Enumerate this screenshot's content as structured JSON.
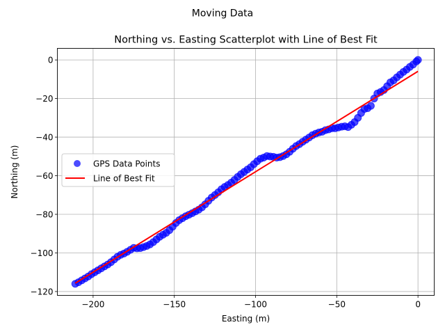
{
  "figure": {
    "suptitle": "Moving Data"
  },
  "chart_data": {
    "type": "scatter",
    "title": "Northing vs. Easting Scatterplot with Line of Best Fit",
    "xlabel": "Easting (m)",
    "ylabel": "Northing (m)",
    "xlim": [
      -222,
      10
    ],
    "ylim": [
      -122,
      6
    ],
    "xticks": [
      -200,
      -150,
      -100,
      -50,
      0
    ],
    "xtick_labels": [
      "−200",
      "−150",
      "−100",
      "−50",
      "0"
    ],
    "yticks": [
      -120,
      -100,
      -80,
      -60,
      -40,
      -20,
      0
    ],
    "ytick_labels": [
      "−120",
      "−100",
      "−80",
      "−60",
      "−40",
      "−20",
      "0"
    ],
    "grid": true,
    "legend_position": "center-left",
    "series": [
      {
        "name": "GPS Data Points",
        "kind": "scatter",
        "color": "#0000ff",
        "opacity": 0.7,
        "x": [
          -211,
          -209,
          -207,
          -205,
          -203,
          -201,
          -199,
          -197,
          -195,
          -193,
          -191,
          -189,
          -187,
          -185,
          -183,
          -181,
          -179,
          -177,
          -175,
          -173,
          -171,
          -169,
          -167,
          -165,
          -163,
          -161,
          -159,
          -157,
          -155,
          -153,
          -151,
          -149,
          -147,
          -145,
          -143,
          -141,
          -139,
          -137,
          -135,
          -133,
          -131,
          -129,
          -127,
          -125,
          -123,
          -121,
          -119,
          -117,
          -115,
          -113,
          -111,
          -109,
          -107,
          -105,
          -103,
          -101,
          -99,
          -97,
          -95,
          -93,
          -91,
          -89,
          -87,
          -85,
          -83,
          -81,
          -79,
          -77,
          -75,
          -73,
          -71,
          -69,
          -67,
          -65,
          -63,
          -61,
          -59,
          -57,
          -55,
          -53,
          -51,
          -49,
          -47,
          -45,
          -43,
          -41,
          -39,
          -37,
          -35,
          -33,
          -31,
          -29,
          -27,
          -25,
          -23,
          -21,
          -19,
          -17,
          -15,
          -13,
          -11,
          -9,
          -7,
          -5,
          -3,
          -1,
          0
        ],
        "y": [
          -116,
          -115.2,
          -114.2,
          -113.2,
          -112.2,
          -111,
          -110,
          -109,
          -108,
          -107,
          -106,
          -104.8,
          -103.4,
          -102,
          -101,
          -100.3,
          -99.4,
          -98.4,
          -97.4,
          -97.6,
          -97.5,
          -97,
          -96.4,
          -95.6,
          -94.4,
          -93,
          -91.6,
          -90.6,
          -89.6,
          -88.2,
          -86.4,
          -84.5,
          -83,
          -82,
          -81,
          -80.2,
          -79.4,
          -78.5,
          -77.6,
          -76.4,
          -74.8,
          -73,
          -71.3,
          -70,
          -68.6,
          -67,
          -65.8,
          -64.8,
          -63.6,
          -62.2,
          -60.6,
          -59.2,
          -58,
          -56.8,
          -55.6,
          -54,
          -52.5,
          -51.2,
          -50.6,
          -49.8,
          -50,
          -50.2,
          -50.6,
          -50.4,
          -49.8,
          -48.9,
          -47.6,
          -46,
          -44.6,
          -43.6,
          -42.4,
          -41.3,
          -40.2,
          -39,
          -38.2,
          -37.6,
          -37.2,
          -36.4,
          -36,
          -35.4,
          -35.4,
          -35,
          -34.6,
          -34.4,
          -34.8,
          -33.6,
          -32.2,
          -30,
          -27.5,
          -25.4,
          -25,
          -23.8,
          -20,
          -17.4,
          -16.6,
          -15.6,
          -13.6,
          -11.6,
          -10.6,
          -9,
          -7.6,
          -6.2,
          -5,
          -3.6,
          -2.4,
          -0.8,
          0
        ]
      },
      {
        "name": "Line of Best Fit",
        "kind": "line",
        "color": "#ff0000",
        "x": [
          -211,
          0
        ],
        "y": [
          -115.7,
          -5.9
        ]
      }
    ]
  }
}
